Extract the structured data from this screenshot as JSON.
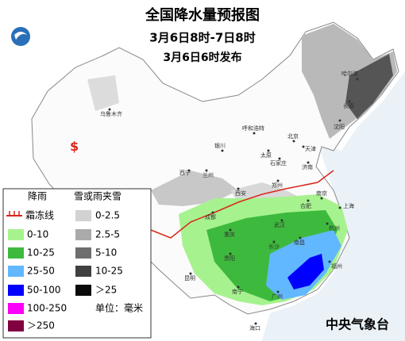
{
  "header": {
    "title": "全国降水量预报图",
    "period": "3月6日8时-7日8时",
    "issued": "3月6日6时发布"
  },
  "legend": {
    "rain": {
      "title": "降雨",
      "items": [
        {
          "label": "0-10",
          "color": "#a6f28f"
        },
        {
          "label": "10-25",
          "color": "#3dba3d"
        },
        {
          "label": "25-50",
          "color": "#61b8ff"
        },
        {
          "label": "50-100",
          "color": "#0000fe"
        },
        {
          "label": "100-250",
          "color": "#fa00fa"
        },
        {
          "label": "＞250",
          "color": "#800040"
        }
      ]
    },
    "frost": {
      "label": "霜冻线",
      "color": "#d9261c"
    },
    "snow": {
      "title": "雪或雨夹雪",
      "items": [
        {
          "label": "0-2.5",
          "color": "#d2d2d2"
        },
        {
          "label": "2.5-5",
          "color": "#aaaaaa"
        },
        {
          "label": "5-10",
          "color": "#6e6e6e"
        },
        {
          "label": "10-25",
          "color": "#404040"
        },
        {
          "label": "＞25",
          "color": "#0a0a0a"
        }
      ]
    },
    "unit": "单位：毫米"
  },
  "cities": [
    "乌鲁木齐",
    "哈尔滨",
    "长春",
    "沈阳",
    "呼和浩特",
    "北京",
    "天津",
    "石家庄",
    "太原",
    "济南",
    "银川",
    "兰州",
    "西宁",
    "郑州",
    "西安",
    "合肥",
    "南京",
    "上海",
    "杭州",
    "武汉",
    "成都",
    "重庆",
    "长沙",
    "南昌",
    "福州",
    "贵阳",
    "昆明",
    "南宁",
    "广州",
    "海口"
  ],
  "footer": "中央气象台"
}
